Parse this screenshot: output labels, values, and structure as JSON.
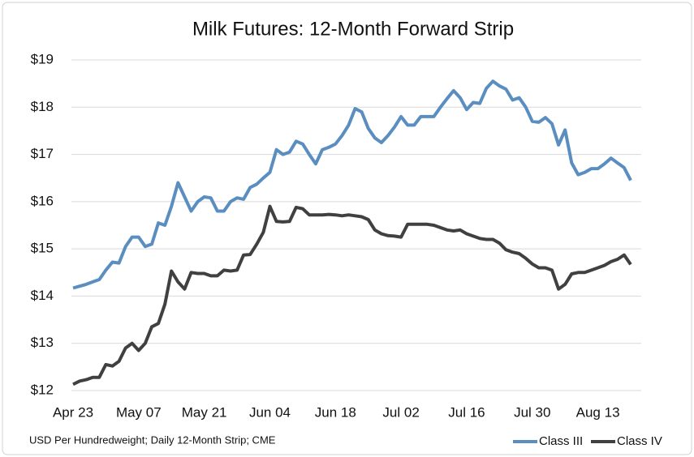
{
  "chart_data": {
    "type": "line",
    "title": "Milk Futures: 12-Month Forward Strip",
    "note": "USD Per Hundredweight; Daily 12-Month Strip; CME",
    "categories": [
      "Apr 23",
      null,
      null,
      null,
      null,
      null,
      null,
      null,
      null,
      null,
      "May 07",
      null,
      null,
      null,
      null,
      null,
      null,
      null,
      null,
      null,
      "May 21",
      null,
      null,
      null,
      null,
      null,
      null,
      null,
      null,
      null,
      "Jun 04",
      null,
      null,
      null,
      null,
      null,
      null,
      null,
      null,
      null,
      "Jun 18",
      null,
      null,
      null,
      null,
      null,
      null,
      null,
      null,
      null,
      "Jul 02",
      null,
      null,
      null,
      null,
      null,
      null,
      null,
      null,
      null,
      "Jul 16",
      null,
      null,
      null,
      null,
      null,
      null,
      null,
      null,
      null,
      "Jul 30",
      null,
      null,
      null,
      null,
      null,
      null,
      null,
      null,
      null,
      "Aug 13",
      null,
      null,
      null,
      null,
      null
    ],
    "series": [
      {
        "name": "Class III",
        "color": "#5b8ec0",
        "values": [
          14.17,
          14.21,
          14.25,
          14.3,
          14.35,
          14.55,
          14.72,
          14.7,
          15.05,
          15.25,
          15.25,
          15.05,
          15.1,
          15.55,
          15.5,
          15.9,
          16.4,
          16.1,
          15.8,
          16.0,
          16.1,
          16.08,
          15.8,
          15.8,
          16.0,
          16.08,
          16.05,
          16.3,
          16.37,
          16.5,
          16.62,
          17.1,
          17.0,
          17.05,
          17.28,
          17.22,
          17.0,
          16.8,
          17.1,
          17.15,
          17.22,
          17.4,
          17.62,
          17.97,
          17.9,
          17.55,
          17.35,
          17.25,
          17.4,
          17.58,
          17.8,
          17.62,
          17.62,
          17.8,
          17.8,
          17.8,
          18.0,
          18.18,
          18.35,
          18.2,
          17.95,
          18.1,
          18.08,
          18.4,
          18.55,
          18.45,
          18.38,
          18.15,
          18.2,
          18.0,
          17.7,
          17.68,
          17.78,
          17.65,
          17.2,
          17.52,
          16.82,
          16.57,
          16.62,
          16.7,
          16.7,
          16.8,
          16.92,
          16.82,
          16.72,
          16.45
        ]
      },
      {
        "name": "Class IV",
        "color": "#404040",
        "values": [
          12.13,
          12.2,
          12.23,
          12.28,
          12.28,
          12.55,
          12.52,
          12.62,
          12.9,
          13.0,
          12.85,
          13.0,
          13.35,
          13.42,
          13.83,
          14.53,
          14.3,
          14.15,
          14.5,
          14.48,
          14.48,
          14.43,
          14.43,
          14.55,
          14.53,
          14.55,
          14.87,
          14.88,
          15.1,
          15.35,
          15.9,
          15.58,
          15.57,
          15.58,
          15.88,
          15.85,
          15.72,
          15.72,
          15.72,
          15.73,
          15.72,
          15.7,
          15.72,
          15.7,
          15.68,
          15.62,
          15.4,
          15.32,
          15.28,
          15.27,
          15.25,
          15.52,
          15.52,
          15.52,
          15.52,
          15.5,
          15.45,
          15.4,
          15.38,
          15.4,
          15.32,
          15.27,
          15.22,
          15.2,
          15.2,
          15.12,
          14.98,
          14.93,
          14.9,
          14.8,
          14.68,
          14.6,
          14.6,
          14.55,
          14.15,
          14.25,
          14.47,
          14.5,
          14.5,
          14.55,
          14.6,
          14.65,
          14.73,
          14.78,
          14.87,
          14.67
        ]
      }
    ],
    "ylim": [
      12,
      19
    ],
    "yticks": [
      {
        "value": 12,
        "label": "$12"
      },
      {
        "value": 13,
        "label": "$13"
      },
      {
        "value": 14,
        "label": "$14"
      },
      {
        "value": 15,
        "label": "$15"
      },
      {
        "value": 16,
        "label": "$16"
      },
      {
        "value": 17,
        "label": "$17"
      },
      {
        "value": 18,
        "label": "$18"
      },
      {
        "value": 19,
        "label": "$19"
      }
    ],
    "grid": true,
    "legend": "bottom-right"
  }
}
